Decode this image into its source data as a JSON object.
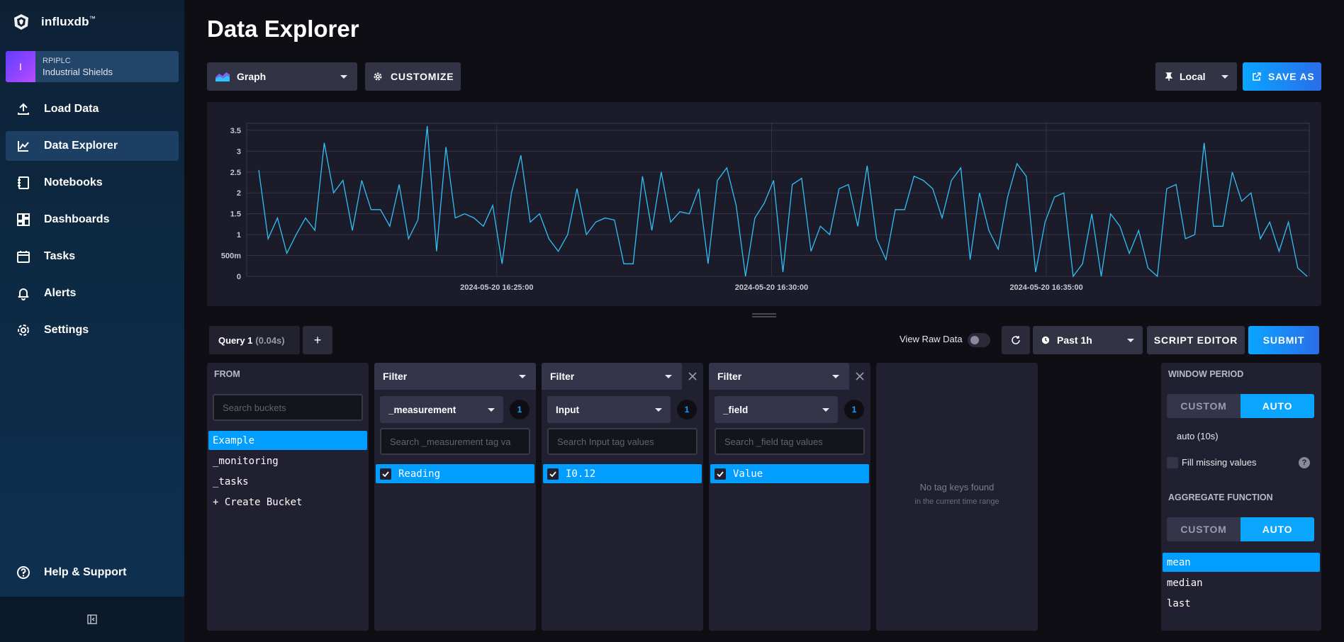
{
  "app": {
    "logo_text": "influxdb",
    "logo_tm": "™"
  },
  "org": {
    "initial": "I",
    "name": "RPIPLC",
    "subtitle": "Industrial Shields"
  },
  "nav": {
    "items": [
      {
        "label": "Load Data",
        "icon": "upload-icon"
      },
      {
        "label": "Data Explorer",
        "icon": "graph-icon",
        "active": true
      },
      {
        "label": "Notebooks",
        "icon": "notebook-icon"
      },
      {
        "label": "Dashboards",
        "icon": "dashboards-icon"
      },
      {
        "label": "Tasks",
        "icon": "calendar-icon"
      },
      {
        "label": "Alerts",
        "icon": "bell-icon"
      },
      {
        "label": "Settings",
        "icon": "gear-icon"
      }
    ],
    "help": "Help & Support"
  },
  "page": {
    "title": "Data Explorer"
  },
  "toolbar": {
    "vis_type": "Graph",
    "customize": "CUSTOMIZE",
    "timezone": "Local",
    "save_as": "SAVE AS"
  },
  "query_bar": {
    "query_name": "Query 1",
    "query_time": "(0.04s)",
    "add": "+",
    "view_raw": "View Raw Data",
    "time_range": "Past 1h",
    "script_editor": "SCRIPT EDITOR",
    "submit": "SUBMIT"
  },
  "from": {
    "title": "FROM",
    "search_placeholder": "Search buckets",
    "buckets": [
      "Example",
      "_monitoring",
      "_tasks",
      "+ Create Bucket"
    ],
    "selected": "Example"
  },
  "filters": [
    {
      "title": "Filter",
      "key": "_measurement",
      "count": "1",
      "search_placeholder": "Search _measurement tag va",
      "value": "Reading",
      "closable": false
    },
    {
      "title": "Filter",
      "key": "Input",
      "count": "1",
      "search_placeholder": "Search Input tag values",
      "value": "I0.12",
      "closable": true
    },
    {
      "title": "Filter",
      "key": "_field",
      "count": "1",
      "search_placeholder": "Search _field tag values",
      "value": "Value",
      "closable": true
    }
  ],
  "empty_filter": {
    "line1": "No tag keys found",
    "line2": "in the current time range"
  },
  "aggregate": {
    "window_title": "WINDOW PERIOD",
    "custom": "CUSTOM",
    "auto": "AUTO",
    "window_value": "auto (10s)",
    "fill_missing": "Fill missing values",
    "function_title": "AGGREGATE FUNCTION",
    "functions": [
      "mean",
      "median",
      "last"
    ],
    "selected_function": "mean"
  },
  "colors": {
    "accent": "#0aa5ff",
    "line": "#31c0f6",
    "bg": "#0f0e15",
    "panel": "#202030"
  },
  "chart_data": {
    "type": "line",
    "title": "",
    "xlabel": "",
    "ylabel": "",
    "ylim": [
      0,
      3.6
    ],
    "y_ticks": [
      "0",
      "500m",
      "1",
      "1.5",
      "2",
      "2.5",
      "3",
      "3.5"
    ],
    "y_tick_values": [
      0,
      0.5,
      1,
      1.5,
      2,
      2.5,
      3,
      3.5
    ],
    "x_ticks": [
      "2024-05-20 16:25:00",
      "2024-05-20 16:30:00",
      "2024-05-20 16:35:00"
    ],
    "x_range": [
      "2024-05-20 16:20:27",
      "2024-05-20 16:39:47"
    ],
    "grid": true,
    "series": [
      {
        "values": [
          2.55,
          0.9,
          1.4,
          0.55,
          1.0,
          1.4,
          1.1,
          3.2,
          2.0,
          2.3,
          1.1,
          2.3,
          1.6,
          1.6,
          1.2,
          2.2,
          0.9,
          1.35,
          3.6,
          0.6,
          3.1,
          1.4,
          1.5,
          1.4,
          1.2,
          1.7,
          0.3,
          2.0,
          2.9,
          1.3,
          1.5,
          0.9,
          0.6,
          1.0,
          2.1,
          1.0,
          1.3,
          1.4,
          1.35,
          0.3,
          0.3,
          2.4,
          1.1,
          2.5,
          1.3,
          1.55,
          1.5,
          2.1,
          0.3,
          2.3,
          2.6,
          1.7,
          0.0,
          1.4,
          1.75,
          2.3,
          0.1,
          2.2,
          2.35,
          0.6,
          1.2,
          1.0,
          2.1,
          2.2,
          1.2,
          2.65,
          0.9,
          0.4,
          1.6,
          1.6,
          2.4,
          2.3,
          2.1,
          1.4,
          2.3,
          2.6,
          0.4,
          2.0,
          1.1,
          0.65,
          1.9,
          2.7,
          2.4,
          0.1,
          1.3,
          1.9,
          2.0,
          0.0,
          0.3,
          1.5,
          0.0,
          1.5,
          1.2,
          0.55,
          1.1,
          0.2,
          0.0,
          2.1,
          2.2,
          0.9,
          1.0,
          3.2,
          1.2,
          1.2,
          2.5,
          1.8,
          2.0,
          0.9,
          1.3,
          0.6,
          1.3,
          0.2,
          0.0
        ]
      }
    ]
  }
}
